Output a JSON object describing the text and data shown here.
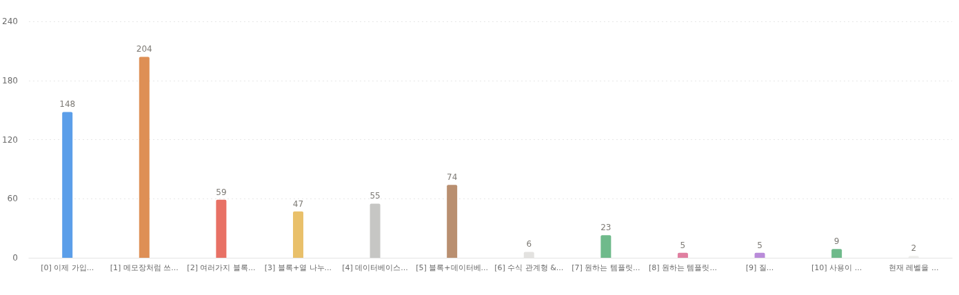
{
  "chart_data": {
    "type": "bar",
    "categories": [
      "[0] 이제 가입...",
      "[1] 메모장처럼 쓰...",
      "[2] 여러가지 블록...",
      "[3] 블록+열 나누...",
      "[4] 데이터베이스...",
      "[5] 블록+데이터베...",
      "[6] 수식 관계형 &...",
      "[7] 원하는 템플릿...",
      "[8] 원하는 템플릿...",
      "[9] 질...",
      "[10] 사용이 ...",
      "현재 레벨을 ..."
    ],
    "values": [
      148,
      204,
      59,
      47,
      55,
      74,
      6,
      23,
      5,
      5,
      9,
      2
    ],
    "colors": [
      "#5b9ee9",
      "#de8f55",
      "#e87165",
      "#e9c06a",
      "#c6c6c4",
      "#b98f70",
      "#e3e2e0",
      "#6fba8b",
      "#e07fa0",
      "#b98bd9",
      "#6fba8b",
      "#efefed"
    ],
    "ylim": [
      0,
      240
    ],
    "yticks": [
      0,
      60,
      120,
      180,
      240
    ],
    "grid": "y",
    "data_labels": true
  }
}
